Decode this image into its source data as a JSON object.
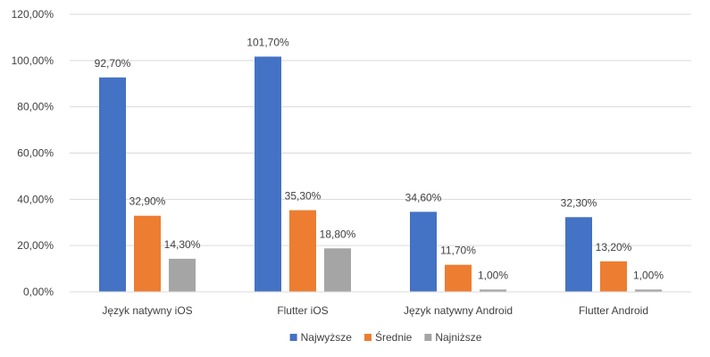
{
  "chart_data": {
    "type": "bar",
    "categories": [
      "Język natywny iOS",
      "Flutter iOS",
      "Język natywny Android",
      "Flutter Android"
    ],
    "series": [
      {
        "name": "Najwyższe",
        "values": [
          92.7,
          101.7,
          34.6,
          32.3
        ],
        "labels": [
          "92,70%",
          "101,70%",
          "34,60%",
          "32,30%"
        ],
        "color": "#4472C4"
      },
      {
        "name": "Średnie",
        "values": [
          32.9,
          35.3,
          11.7,
          13.2
        ],
        "labels": [
          "32,90%",
          "35,30%",
          "11,70%",
          "13,20%"
        ],
        "color": "#ED7D31"
      },
      {
        "name": "Najniższe",
        "values": [
          14.3,
          18.8,
          1.0,
          1.0
        ],
        "labels": [
          "14,30%",
          "18,80%",
          "1,00%",
          "1,00%"
        ],
        "color": "#A5A5A5"
      }
    ],
    "ylim": [
      0,
      120
    ],
    "yticks": [
      0,
      20,
      40,
      60,
      80,
      100,
      120
    ],
    "ytick_labels": [
      "0,00%",
      "20,00%",
      "40,00%",
      "60,00%",
      "80,00%",
      "100,00%",
      "120,00%"
    ],
    "grid": true,
    "legend_position": "bottom",
    "title": "",
    "xlabel": "",
    "ylabel": ""
  }
}
